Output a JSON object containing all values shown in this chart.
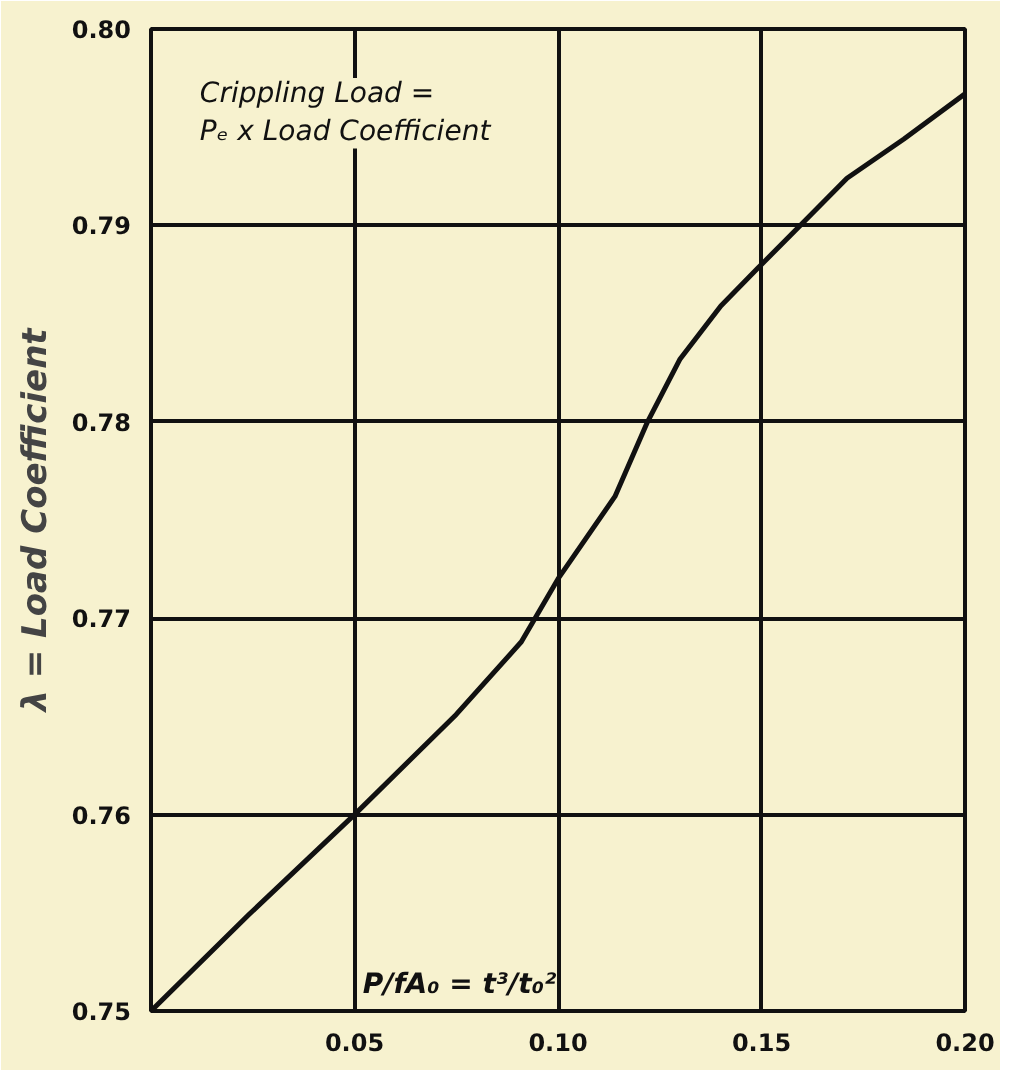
{
  "chart_data": {
    "type": "line",
    "ylabel": "λ = Load Coefficient",
    "annotations": [
      "Crippling Load =\nPₑ x Load Coefficient",
      "P/fA₀ = t³/t₀²"
    ],
    "x": [
      0,
      0.024,
      0.05,
      0.075,
      0.091,
      0.1,
      0.114,
      0.122,
      0.13,
      0.14,
      0.149,
      0.16,
      0.171,
      0.185,
      0.2
    ],
    "series": [
      {
        "color": "#111111",
        "values": [
          0.75,
          0.7549,
          0.76,
          0.7651,
          0.7688,
          0.772,
          0.7762,
          0.78,
          0.7832,
          0.7859,
          0.7878,
          0.7901,
          0.7924,
          0.7944,
          0.7967
        ]
      }
    ],
    "xlim": [
      0,
      0.2
    ],
    "ylim": [
      0.75,
      0.8
    ],
    "xticks": [
      0.05,
      {
        "value": 0.1,
        "label": "0.10"
      },
      0.15,
      {
        "value": 0.2,
        "label": "0.20"
      }
    ],
    "yticks": [
      0.75,
      0.76,
      0.77,
      0.78,
      0.79,
      {
        "value": 0.8,
        "label": "0.80"
      }
    ],
    "grid": true,
    "marker": "none",
    "line_style": "solid"
  }
}
